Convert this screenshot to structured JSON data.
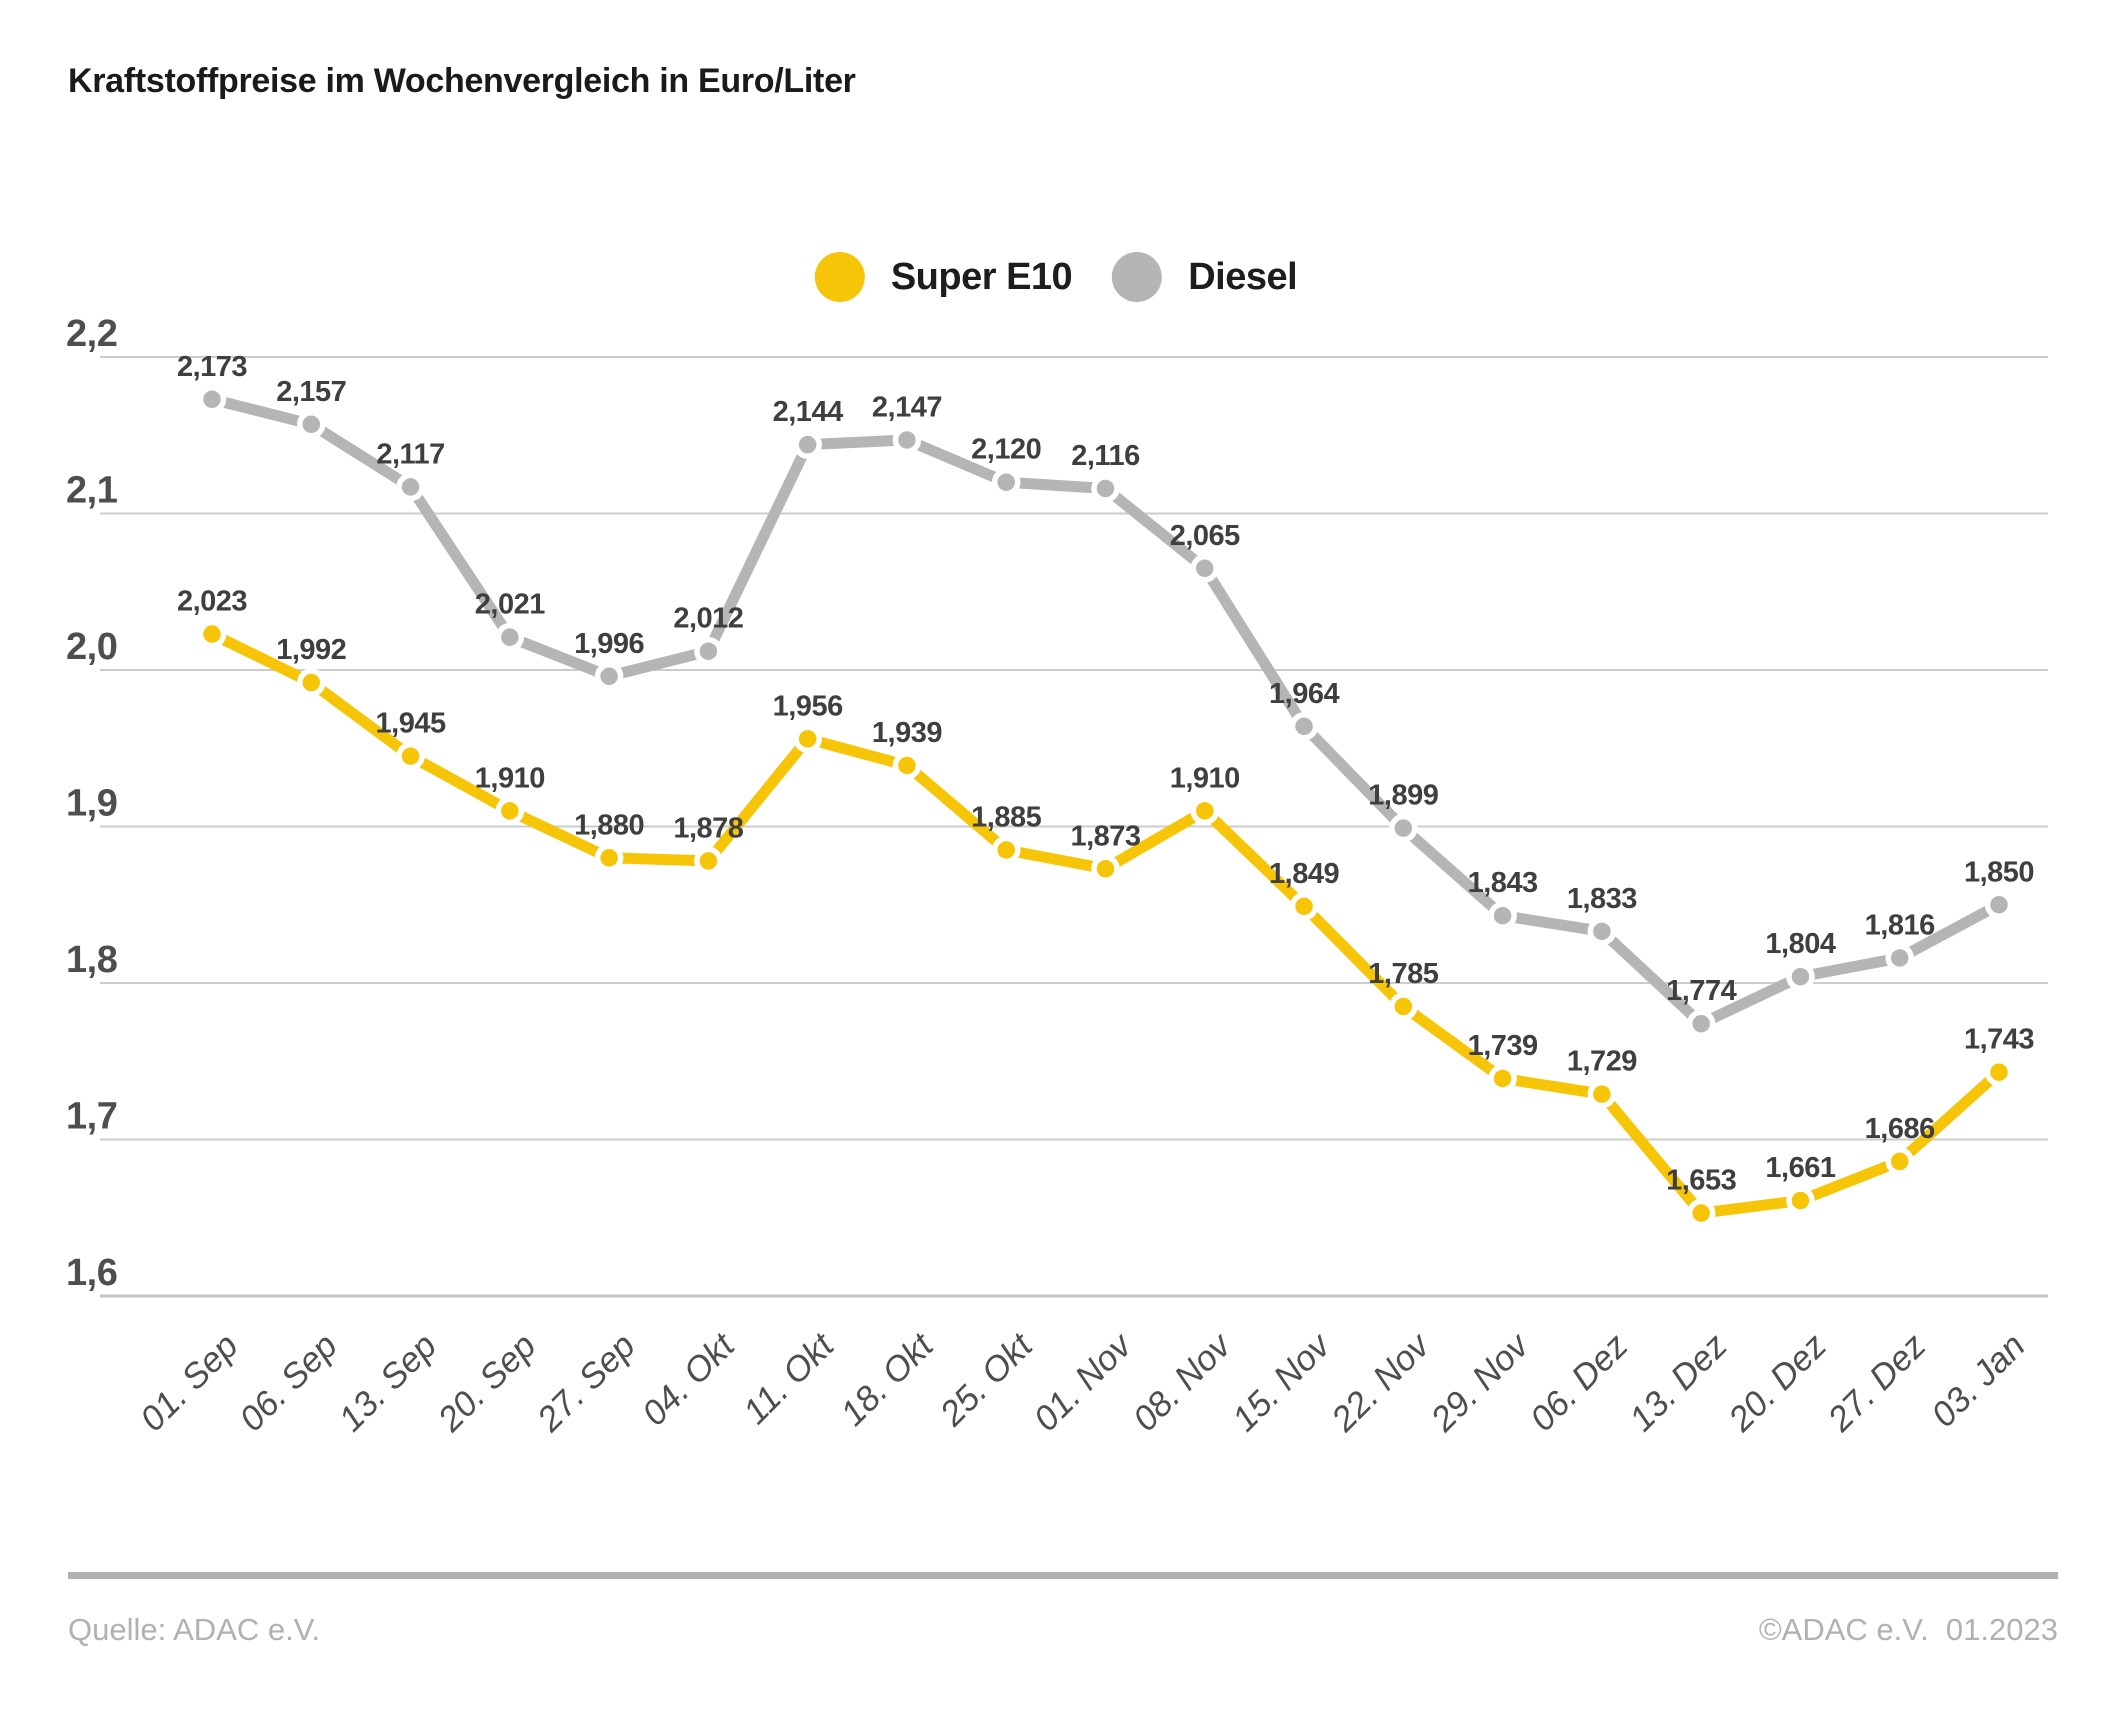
{
  "chart_data": {
    "type": "line",
    "title": "Kraftstoffpreise im Wochenvergleich in Euro/Liter",
    "categories": [
      "01. Sep",
      "06. Sep",
      "13. Sep",
      "20. Sep",
      "27. Sep",
      "04. Okt",
      "11. Okt",
      "18. Okt",
      "25. Okt",
      "01. Nov",
      "08. Nov",
      "15. Nov",
      "22. Nov",
      "29. Nov",
      "06. Dez",
      "13. Dez",
      "20. Dez",
      "27. Dez",
      "03. Jan"
    ],
    "series": [
      {
        "name": "Diesel",
        "color": "#b5b5b5",
        "values": [
          2.173,
          2.157,
          2.117,
          2.021,
          1.996,
          2.012,
          2.144,
          2.147,
          2.12,
          2.116,
          2.065,
          1.964,
          1.899,
          1.843,
          1.833,
          1.774,
          1.804,
          1.816,
          1.85
        ]
      },
      {
        "name": "Super E10",
        "color": "#f7c508",
        "values": [
          2.023,
          1.992,
          1.945,
          1.91,
          1.88,
          1.878,
          1.956,
          1.939,
          1.885,
          1.873,
          1.91,
          1.849,
          1.785,
          1.739,
          1.729,
          1.653,
          1.661,
          1.686,
          1.743
        ]
      }
    ],
    "legend_order": [
      "Super E10",
      "Diesel"
    ],
    "legend_position": "top-center",
    "xlabel": "",
    "ylabel": "",
    "ylim": [
      1.6,
      2.2
    ],
    "yticks": [
      2.2,
      2.1,
      2.0,
      1.9,
      1.8,
      1.7,
      1.6
    ],
    "grid": true,
    "decimal_separator": ",",
    "value_decimals": 3,
    "tick_decimals": 1,
    "colors": {
      "gridline": "#cccccc",
      "axis_bottom": "#c4c4c4",
      "tick_text": "#4e4e4e",
      "data_label_text": "#3f3f3f",
      "marker_ring": "#ffffff"
    }
  },
  "footer": {
    "source": "Quelle: ADAC e.V.",
    "copyright": "©ADAC e.V.  01.2023"
  }
}
